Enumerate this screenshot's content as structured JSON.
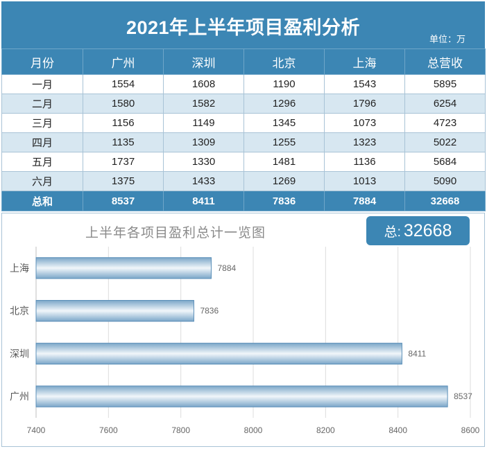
{
  "header": {
    "title": "2021年上半年项目盈利分析",
    "unit": "单位：万"
  },
  "table": {
    "columns": [
      "月份",
      "广州",
      "深圳",
      "北京",
      "上海",
      "总营收"
    ],
    "rows": [
      [
        "一月",
        "1554",
        "1608",
        "1190",
        "1543",
        "5895"
      ],
      [
        "二月",
        "1580",
        "1582",
        "1296",
        "1796",
        "6254"
      ],
      [
        "三月",
        "1156",
        "1149",
        "1345",
        "1073",
        "4723"
      ],
      [
        "四月",
        "1135",
        "1309",
        "1255",
        "1323",
        "5022"
      ],
      [
        "五月",
        "1737",
        "1330",
        "1481",
        "1136",
        "5684"
      ],
      [
        "六月",
        "1375",
        "1433",
        "1269",
        "1013",
        "5090"
      ]
    ],
    "total_row": [
      "总和",
      "8537",
      "8411",
      "7836",
      "7884",
      "32668"
    ]
  },
  "total_badge": {
    "label": "总:",
    "value": "32668"
  },
  "colors": {
    "accent": "#3c86b4",
    "stripe": "#d7e7f1",
    "bar_edge": "#5b8fb8"
  },
  "chart_data": {
    "type": "bar",
    "orientation": "horizontal",
    "title": "上半年各项目盈利总计一览图",
    "categories": [
      "上海",
      "北京",
      "深圳",
      "广州"
    ],
    "values": [
      7884,
      7836,
      8411,
      8537
    ],
    "xlim": [
      7400,
      8600
    ],
    "xticks": [
      7400,
      7600,
      7800,
      8000,
      8200,
      8400,
      8600
    ],
    "grid": "vertical",
    "data_labels": true,
    "legend": "none"
  }
}
